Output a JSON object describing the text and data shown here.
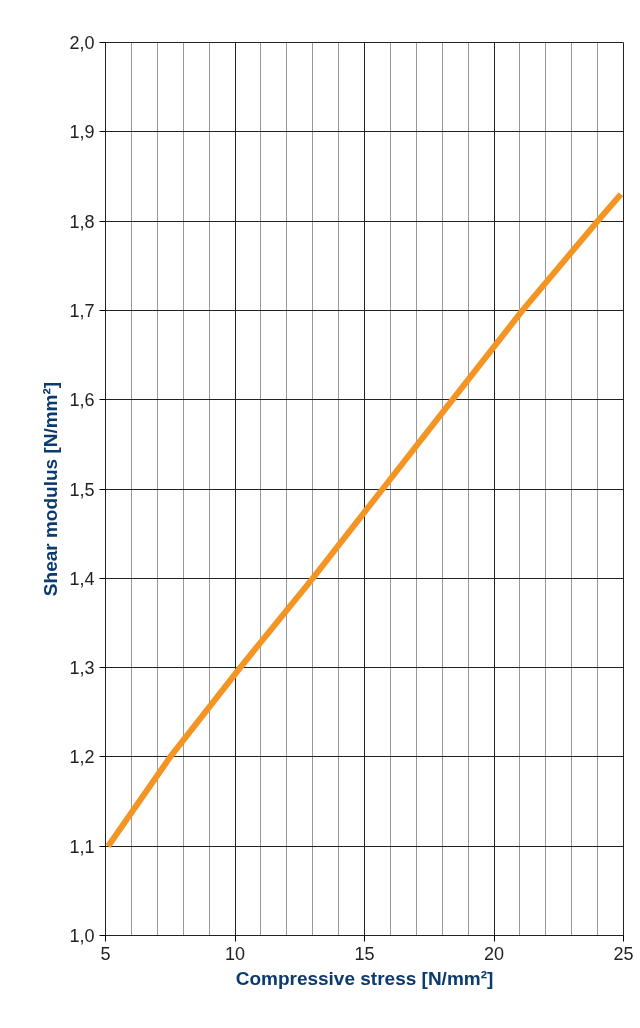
{
  "chart_data": {
    "type": "line",
    "xlabel": "Compressive stress [N/mm²]",
    "ylabel": "Shear modulus [N/mm²]",
    "x": [
      5.1,
      7.5,
      10.2,
      13.0,
      15.7,
      18.4,
      21.1,
      24.0,
      24.9
    ],
    "series": [
      {
        "color": "#f39423",
        "values": [
          1.1,
          1.2,
          1.3,
          1.4,
          1.5,
          1.6,
          1.7,
          1.8,
          1.83
        ]
      }
    ],
    "xlim": [
      5,
      25
    ],
    "ylim": [
      1.0,
      2.0
    ],
    "xticks": [
      5,
      10,
      15,
      20,
      25
    ],
    "yticks": [
      {
        "value": 1.0,
        "label": "1,0"
      },
      {
        "value": 1.1,
        "label": "1,1"
      },
      {
        "value": 1.2,
        "label": "1,2"
      },
      {
        "value": 1.3,
        "label": "1,3"
      },
      {
        "value": 1.4,
        "label": "1,4"
      },
      {
        "value": 1.5,
        "label": "1,5"
      },
      {
        "value": 1.6,
        "label": "1,6"
      },
      {
        "value": 1.7,
        "label": "1,7"
      },
      {
        "value": 1.8,
        "label": "1,8"
      },
      {
        "value": 1.9,
        "label": "1,9"
      },
      {
        "value": 2.0,
        "label": "2,0"
      }
    ],
    "grid": true,
    "marker": "none",
    "line_style": "solid"
  }
}
